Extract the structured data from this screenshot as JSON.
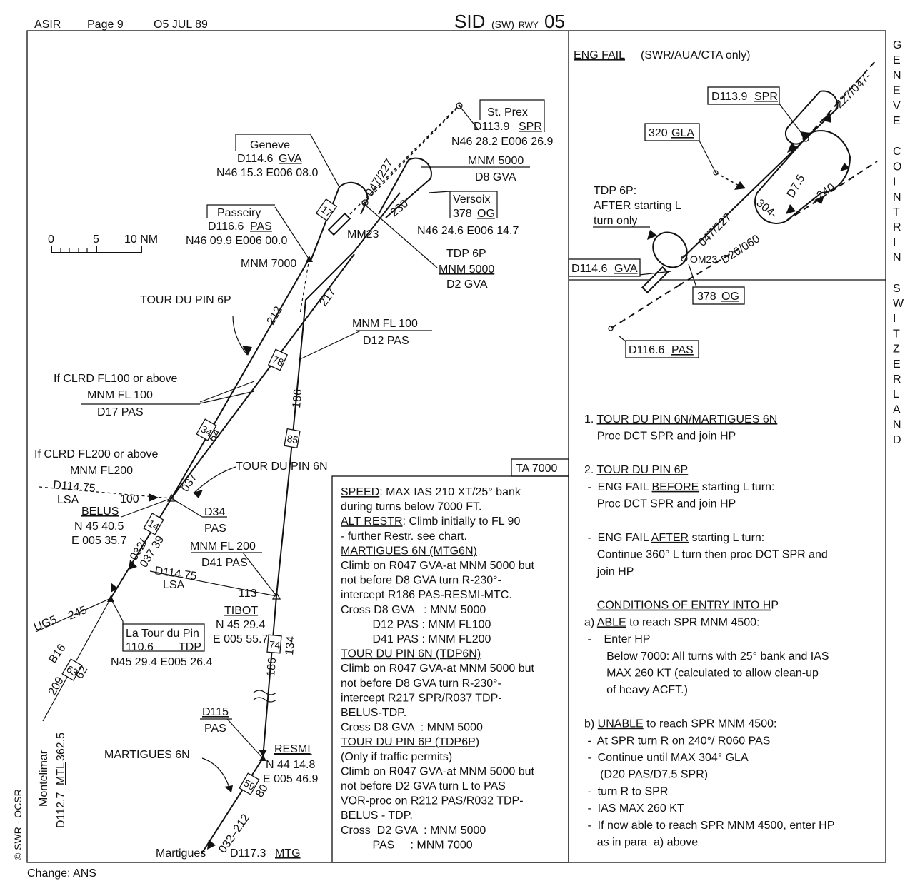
{
  "header": {
    "org": "ASIR",
    "page": "Page 9",
    "date": "O5 JUL 89",
    "title_sid": "SID",
    "title_sw": "(SW)",
    "title_rwy": "RWY",
    "title_num": "05",
    "side_title": "GENEVE COINTRIN SWITZERLAND"
  },
  "footer": {
    "change": "Change: ANS",
    "copyright": "© SWR - OCSR"
  },
  "scale": {
    "zero": "0",
    "five": "5",
    "ten": "10 NM"
  },
  "stations": {
    "geneve": {
      "name": "Geneve",
      "freq": "D114.6",
      "ident": "GVA",
      "coords": "N46 15.3 E006 08.0"
    },
    "stprex": {
      "name": "St. Prex",
      "freq": "D113.9",
      "ident": "SPR",
      "coords": "N46 28.2 E006 26.9"
    },
    "passeiry": {
      "name": "Passeiry",
      "freq": "D116.6",
      "ident": "PAS",
      "coords": "N46 09.9 E006 00.0"
    },
    "versoix": {
      "name": "Versoix",
      "freq": "378",
      "ident": "OG",
      "coords": "N46 24.6 E006 14.7"
    },
    "latourdupin": {
      "name": "La Tour du Pin",
      "freq": "110.6",
      "ident": "TDP",
      "coords": "N45 29.4 E005 26.4"
    },
    "montelimar": {
      "name": "Montelimar",
      "freq": "D112.7",
      "ident": "MTL",
      "radial": "362.5"
    },
    "martigues": {
      "name": "Martigues",
      "freq": "D117.3",
      "ident": "MTG"
    }
  },
  "fixes": {
    "belus": {
      "name": "BELUS",
      "lat": "N 45 40.5",
      "lon": "E 005 35.7"
    },
    "tibot": {
      "name": "TIBOT",
      "lat": "N 45 29.4",
      "lon": "E 005 55.7"
    },
    "resmi": {
      "name": "RESMI",
      "lat": "N 44 14.8",
      "lon": "E 005 46.9"
    }
  },
  "labels": {
    "mnm5000": "MNM 5000",
    "d8gva": "D8 GVA",
    "tdp6p": "TDP 6P",
    "mnm5000b": "MNM 5000",
    "d2gva": "D2 GVA",
    "mm23": "MM23",
    "mnm7000": "MNM 7000",
    "tourdupin6p": "TOUR DU PIN 6P",
    "tourdupin6n": "TOUR DU PIN 6N",
    "mnmfl100": "MNM FL 100",
    "d12pas": "D12 PAS",
    "clrd100": "If CLRD FL100 or above",
    "mnmfl100b": "MNM FL 100",
    "d17pas": "D17 PAS",
    "clrd200": "If CLRD FL200 or above",
    "mnmfl200": "MNM FL200",
    "d11475": "D114.75",
    "lsa": "LSA",
    "r100": "100",
    "d34": "D34",
    "pas": "PAS",
    "mnmfl200b": "MNM FL 200",
    "d41pas": "D41 PAS",
    "d11475b": "D114.75",
    "lsab": "LSA",
    "r113": "113",
    "ug5": "UG5",
    "r245": "245",
    "b16": "B16",
    "r209": "209",
    "r62": "62",
    "b63": "63",
    "d115": "D115",
    "pas2": "PAS",
    "martigues6n": "MARTIGUES 6N",
    "r047227": "047/227",
    "r230": "230",
    "r212": "212",
    "r217": "217",
    "r186": "186",
    "r186b": "186",
    "r037": "037",
    "r64": "64",
    "r134": "134",
    "r032037": "032/",
    "r039": "037 39",
    "r80": "80",
    "r032212": "032–212",
    "b17": "17",
    "b78": "78",
    "b34": "34",
    "b85": "85",
    "b14": "14",
    "b74": "74",
    "b59": "59",
    "ta": "TA 7000"
  },
  "procedure_text": [
    {
      "t": "SPEED",
      "u": true,
      "rest": ": MAX IAS 210 XT/25° bank"
    },
    {
      "t": "during turns below 7000 FT."
    },
    {
      "t": "ALT RESTR",
      "u": true,
      "rest": ": Climb initially to FL 90"
    },
    {
      "t": "- further Restr. see chart."
    },
    {
      "t": "MARTIGUES 6N (MTG6N)",
      "u": true
    },
    {
      "t": "Climb on R047 GVA-at MNM 5000 but"
    },
    {
      "t": "not before D8 GVA turn R-230°-"
    },
    {
      "t": "intercept R186 PAS-RESMI-MTC."
    },
    {
      "t": "Cross D8 GVA   : MNM 5000"
    },
    {
      "t": "          D12 PAS : MNM FL100"
    },
    {
      "t": "          D41 PAS : MNM FL200"
    },
    {
      "t": "TOUR DU PIN 6N (TDP6N)",
      "u": true
    },
    {
      "t": "Climb on R047 GVA-at MNM 5000 but"
    },
    {
      "t": "not before D8 GVA turn R-230°-"
    },
    {
      "t": "intercept R217 SPR/R037 TDP-"
    },
    {
      "t": "BELUS-TDP."
    },
    {
      "t": "Cross D8 GVA  : MNM 5000"
    },
    {
      "t": "TOUR DU PIN 6P (TDP6P)",
      "u": true
    },
    {
      "t": "(Only if traffic permits)"
    },
    {
      "t": "Climb on R047 GVA-at MNM 5000 but"
    },
    {
      "t": "not before D2 GVA turn L to PAS"
    },
    {
      "t": "VOR-proc on R212 PAS/R032 TDP-"
    },
    {
      "t": "BELUS - TDP."
    },
    {
      "t": "Cross  D2 GVA  : MNM 5000"
    },
    {
      "t": "          PAS     : MNM 7000"
    }
  ],
  "engfail": {
    "title": "ENG FAIL",
    "sub": "(SWR/AUA/CTA only)",
    "spr": "D113.9",
    "spr_id": "SPR",
    "gla": "320",
    "gla_id": "GLA",
    "gva": "D114.6",
    "gva_id": "GVA",
    "og": "378",
    "og_id": "OG",
    "pas": "D116.6",
    "pas_id": "PAS",
    "tdp6p": "TDP 6P:",
    "after": "AFTER starting L",
    "turn": "turn only",
    "r047": "047/227",
    "r227047": "-227/047-",
    "om23": "OM23",
    "d20": "D20/060",
    "d75": "D7.5",
    "r304": "304-",
    "r240": "240"
  },
  "instructions": [
    {
      "t": "1. ",
      "u": "TOUR DU PIN 6N/MARTIGUES 6N"
    },
    {
      "t": "    Proc DCT SPR and join HP"
    },
    {
      "t": ""
    },
    {
      "t": "2. ",
      "u": "TOUR DU PIN 6P"
    },
    {
      "t": " -  ENG FAIL ",
      "u": "BEFORE",
      "rest": " starting L turn:"
    },
    {
      "t": "    Proc DCT SPR and join HP"
    },
    {
      "t": ""
    },
    {
      "t": " -  ENG FAIL ",
      "u": "AFTER",
      "rest": " starting L turn:"
    },
    {
      "t": "    Continue 360° L turn then proc DCT SPR and"
    },
    {
      "t": "    join HP"
    },
    {
      "t": ""
    },
    {
      "t": "    ",
      "u": "CONDITIONS OF ENTRY INTO H",
      "rest": "P"
    },
    {
      "t": "a) ",
      "u": "ABLE",
      "rest": " to reach SPR MNM 4500:"
    },
    {
      "t": " -    Enter HP"
    },
    {
      "t": "       Below 7000: All turns with 25° bank and IAS"
    },
    {
      "t": "       MAX 260 KT (calculated to allow clean-up"
    },
    {
      "t": "       of heavy ACFT.)"
    },
    {
      "t": ""
    },
    {
      "t": "b) ",
      "u": "UNABLE",
      "rest": " to reach SPR MNM 4500:"
    },
    {
      "t": " -  At SPR turn R on 240°/ R060 PAS"
    },
    {
      "t": " -  Continue until MAX 304° GLA"
    },
    {
      "t": "     (D20 PAS/D7.5 SPR)"
    },
    {
      "t": " -  turn R to SPR"
    },
    {
      "t": " -  IAS MAX 260 KT"
    },
    {
      "t": " -  If now able to reach SPR MNM 4500, enter HP"
    },
    {
      "t": "    as in para  a) above"
    }
  ]
}
